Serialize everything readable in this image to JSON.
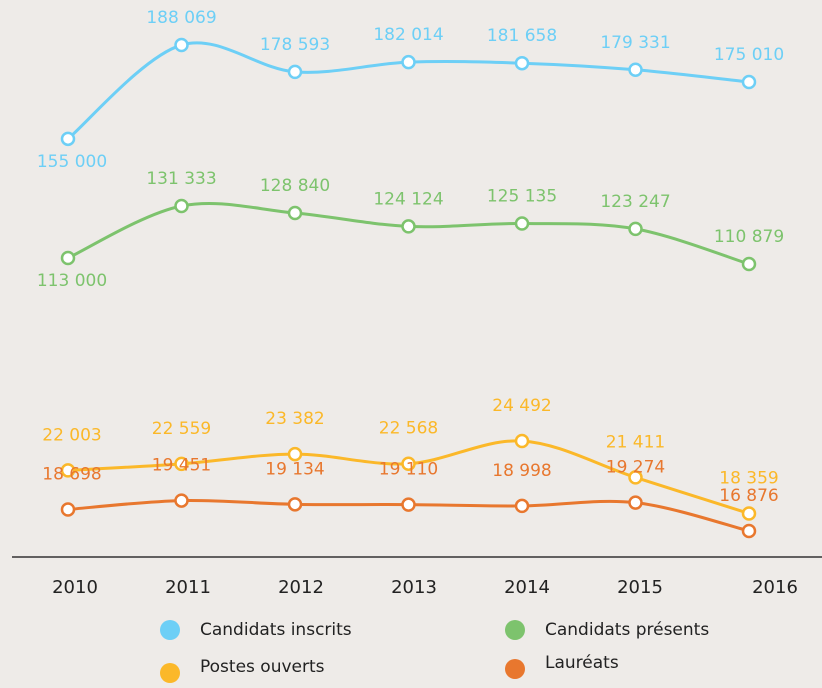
{
  "chart_data": {
    "type": "line",
    "categories": [
      "2010",
      "2011",
      "2012",
      "2013",
      "2014",
      "2015",
      "2016"
    ],
    "series": [
      {
        "name": "Candidats inscrits",
        "color": "#6dcff6",
        "values": [
          155000,
          188069,
          178593,
          182014,
          181658,
          179331,
          175010
        ],
        "value_labels": [
          "155 000",
          "188 069",
          "178 593",
          "182 014",
          "181 658",
          "179 331",
          "175 010"
        ]
      },
      {
        "name": "Candidats présents",
        "color": "#7dc36d",
        "values": [
          113000,
          131333,
          128840,
          124124,
          125135,
          123247,
          110879
        ],
        "value_labels": [
          "113 000",
          "131 333",
          "128 840",
          "124 124",
          "125 135",
          "123 247",
          "110 879"
        ]
      },
      {
        "name": "Postes ouverts",
        "color": "#fbb829",
        "values": [
          22003,
          22559,
          23382,
          22568,
          24492,
          21411,
          18359
        ],
        "value_labels": [
          "22 003",
          "22 559",
          "23 382",
          "22 568",
          "24 492",
          "21 411",
          "18 359"
        ]
      },
      {
        "name": "Lauréats",
        "color": "#e8772e",
        "values": [
          18698,
          19451,
          19134,
          19110,
          18998,
          19274,
          16876
        ],
        "value_labels": [
          "18 698",
          "19 451",
          "19 134",
          "19 110",
          "18 998",
          "19 274",
          "16 876"
        ]
      }
    ]
  }
}
